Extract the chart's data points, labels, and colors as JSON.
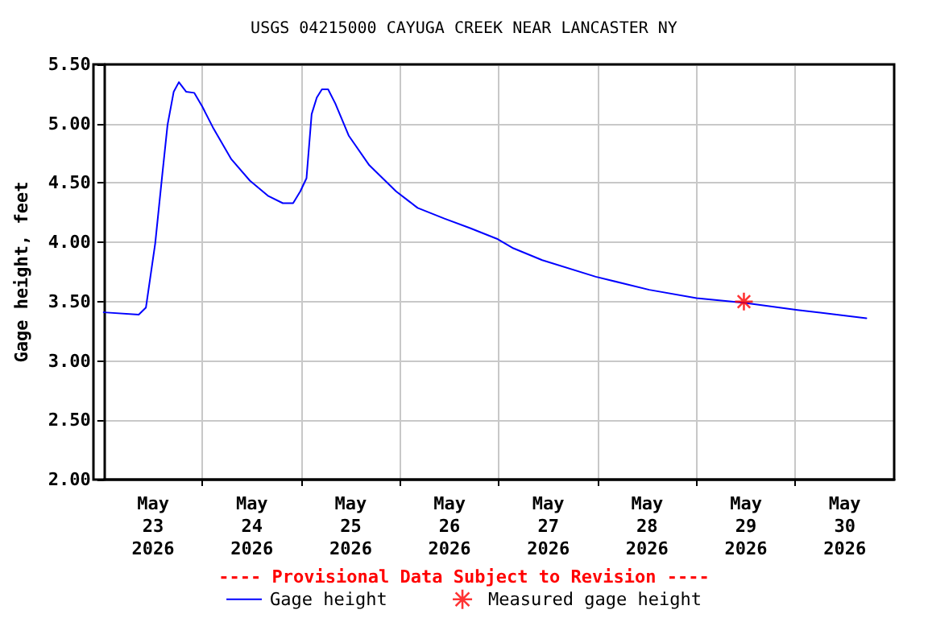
{
  "chart_data": {
    "type": "line",
    "title": "USGS 04215000 CAYUGA CREEK NEAR LANCASTER NY",
    "ylabel": "Gage height, feet",
    "annotations": [
      "---- Provisional Data Subject to Revision ----"
    ],
    "x": [
      "2026-05-23T00:00",
      "2026-05-23T08:30",
      "2026-05-23T10:15",
      "2026-05-23T12:30",
      "2026-05-23T14:15",
      "2026-05-23T15:30",
      "2026-05-23T17:00",
      "2026-05-23T18:15",
      "2026-05-23T20:00",
      "2026-05-23T22:00",
      "2026-05-24T00:00",
      "2026-05-24T02:30",
      "2026-05-24T07:00",
      "2026-05-24T11:30",
      "2026-05-24T16:00",
      "2026-05-24T19:30",
      "2026-05-24T22:00",
      "2026-05-24T23:45",
      "2026-05-25T01:15",
      "2026-05-25T02:30",
      "2026-05-25T03:45",
      "2026-05-25T05:00",
      "2026-05-25T06:30",
      "2026-05-25T08:15",
      "2026-05-25T11:30",
      "2026-05-25T16:30",
      "2026-05-25T23:00",
      "2026-05-26T04:15",
      "2026-05-26T10:45",
      "2026-05-26T17:00",
      "2026-05-26T23:30",
      "2026-05-27T03:30",
      "2026-05-27T10:30",
      "2026-05-27T23:30",
      "2026-05-28T12:30",
      "2026-05-29T00:00",
      "2026-05-29T11:30",
      "2026-05-30T00:30",
      "2026-05-30T17:15"
    ],
    "series": [
      {
        "name": "Gage height",
        "color": "#0000ff",
        "marker": "none",
        "values": [
          3.41,
          3.39,
          3.45,
          3.99,
          4.58,
          4.99,
          5.27,
          5.35,
          5.27,
          5.26,
          5.14,
          4.97,
          4.7,
          4.52,
          4.39,
          4.33,
          4.33,
          4.43,
          4.54,
          5.08,
          5.22,
          5.29,
          5.29,
          5.17,
          4.9,
          4.65,
          4.43,
          4.29,
          4.2,
          4.12,
          4.03,
          3.95,
          3.85,
          3.71,
          3.6,
          3.53,
          3.49,
          3.43,
          3.36
        ]
      },
      {
        "name": "Measured gage height",
        "type": "scatter",
        "color": "#ff0000",
        "marker": "cross",
        "x": [
          "2026-05-29T11:30"
        ],
        "values": [
          3.5
        ]
      }
    ],
    "xlim": [
      "2026-05-23T00:00",
      "2026-05-31T00:00"
    ],
    "xticks": [
      {
        "value": "2026-05-23T12:00",
        "label": "May\n23\n2026"
      },
      {
        "value": "2026-05-24T00:00",
        "label": null
      },
      {
        "value": "2026-05-24T12:00",
        "label": "May\n24\n2026"
      },
      {
        "value": "2026-05-25T00:00",
        "label": null
      },
      {
        "value": "2026-05-25T12:00",
        "label": "May\n25\n2026"
      },
      {
        "value": "2026-05-26T00:00",
        "label": null
      },
      {
        "value": "2026-05-26T12:00",
        "label": "May\n26\n2026"
      },
      {
        "value": "2026-05-27T00:00",
        "label": null
      },
      {
        "value": "2026-05-27T12:00",
        "label": "May\n27\n2026"
      },
      {
        "value": "2026-05-28T00:00",
        "label": null
      },
      {
        "value": "2026-05-28T12:00",
        "label": "May\n28\n2026"
      },
      {
        "value": "2026-05-29T00:00",
        "label": null
      },
      {
        "value": "2026-05-29T12:00",
        "label": "May\n29\n2026"
      },
      {
        "value": "2026-05-30T00:00",
        "label": null
      },
      {
        "value": "2026-05-30T12:00",
        "label": "May\n30\n2026"
      }
    ],
    "ylim": [
      2.0,
      5.5
    ],
    "yticks": [
      {
        "value": 2.0,
        "label": "2.00"
      },
      {
        "value": 2.5,
        "label": "2.50"
      },
      {
        "value": 3.0,
        "label": "3.00"
      },
      {
        "value": 3.5,
        "label": "3.50"
      },
      {
        "value": 4.0,
        "label": "4.00"
      },
      {
        "value": 4.5,
        "label": "4.50"
      },
      {
        "value": 5.0,
        "label": "5.00"
      },
      {
        "value": 5.5,
        "label": "5.50"
      }
    ],
    "grid": true,
    "legend": "bottom",
    "line_style": "solid"
  }
}
